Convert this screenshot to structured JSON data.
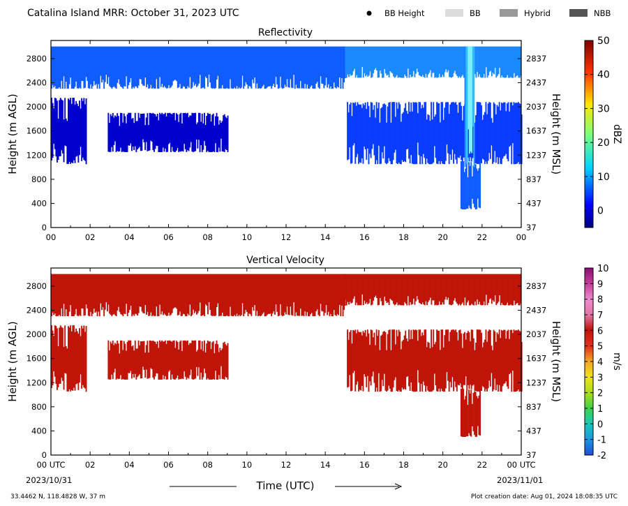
{
  "header": {
    "title": "Catalina Island MRR:  October 31, 2023 UTC",
    "legend": [
      {
        "label": "BB Height",
        "icon": "dot-icon",
        "color": "#000000"
      },
      {
        "label": "BB",
        "icon": "swatch-icon",
        "color": "#dcdcdc"
      },
      {
        "label": "Hybrid",
        "icon": "swatch-icon",
        "color": "#999999"
      },
      {
        "label": "NBB",
        "icon": "swatch-icon",
        "color": "#555555"
      }
    ]
  },
  "footer": {
    "location": "33.4462 N, 118.4828 W, 37 m",
    "creation": "Plot creation date: Aug 01, 2024 18:08:35 UTC",
    "start_date": "2023/10/31",
    "end_date": "2023/11/01",
    "time_label": "Time (UTC)"
  },
  "chart_data": [
    {
      "type": "heatmap",
      "title": "Reflectivity",
      "xlabel": "",
      "ylabel": "Height (m AGL)",
      "ylabel_right": "Height (m MSL)",
      "x_ticks": [
        "00",
        "02",
        "04",
        "06",
        "08",
        "10",
        "12",
        "14",
        "16",
        "18",
        "20",
        "22",
        "00"
      ],
      "y_ticks": [
        "0",
        "400",
        "800",
        "1200",
        "1600",
        "2000",
        "2400",
        "2800"
      ],
      "y_ticks_right": [
        "37",
        "437",
        "837",
        "1237",
        "1637",
        "2037",
        "2437",
        "2837"
      ],
      "xlim": [
        0,
        24
      ],
      "ylim": [
        0,
        3100
      ],
      "colorbar": {
        "label": "dBZ",
        "ticks": [
          "0",
          "10",
          "20",
          "30",
          "40",
          "50"
        ],
        "range": [
          -5,
          50
        ]
      },
      "echo_regions": [
        {
          "t0": 0.0,
          "t1": 1.8,
          "h0": 1050,
          "h1": 2150,
          "value": 0
        },
        {
          "t0": 2.9,
          "t1": 9.0,
          "h0": 1250,
          "h1": 1900,
          "value": 0
        },
        {
          "t0": 0.0,
          "t1": 15.0,
          "h0": 2300,
          "h1": 3000,
          "value": 3
        },
        {
          "t0": 15.0,
          "t1": 24.0,
          "h0": 2480,
          "h1": 3000,
          "value": 4
        },
        {
          "t0": 15.1,
          "t1": 24.0,
          "h0": 1050,
          "h1": 2080,
          "value": 2
        },
        {
          "t0": 20.9,
          "t1": 21.9,
          "h0": 300,
          "h1": 1100,
          "value": 3
        },
        {
          "t0": 21.1,
          "t1": 21.6,
          "h0": 1000,
          "h1": 3000,
          "value": 10
        }
      ]
    },
    {
      "type": "heatmap",
      "title": "Vertical Velocity",
      "xlabel": "Time (UTC)",
      "ylabel": "Height (m AGL)",
      "ylabel_right": "Height (m MSL)",
      "x_ticks": [
        "00 UTC",
        "02",
        "04",
        "06",
        "08",
        "10",
        "12",
        "14",
        "16",
        "18",
        "20",
        "22",
        "00 UTC"
      ],
      "y_ticks": [
        "0",
        "400",
        "800",
        "1200",
        "1600",
        "2000",
        "2400",
        "2800"
      ],
      "y_ticks_right": [
        "37",
        "437",
        "837",
        "1237",
        "1637",
        "2037",
        "2437",
        "2837"
      ],
      "xlim": [
        0,
        24
      ],
      "ylim": [
        0,
        3100
      ],
      "colorbar": {
        "label": "m/s",
        "ticks": [
          "-2",
          "-1",
          "0",
          "1",
          "2",
          "3",
          "4",
          "5",
          "6",
          "7",
          "8",
          "9",
          "10"
        ],
        "range": [
          -2,
          10
        ]
      },
      "echo_regions": [
        {
          "t0": 0.0,
          "t1": 1.8,
          "h0": 1050,
          "h1": 2150,
          "value": 5.5
        },
        {
          "t0": 2.9,
          "t1": 9.0,
          "h0": 1250,
          "h1": 1900,
          "value": 5.5
        },
        {
          "t0": 0.0,
          "t1": 15.0,
          "h0": 2300,
          "h1": 3000,
          "value": 5.5
        },
        {
          "t0": 15.0,
          "t1": 24.0,
          "h0": 2480,
          "h1": 3000,
          "value": 5.5
        },
        {
          "t0": 15.1,
          "t1": 24.0,
          "h0": 1050,
          "h1": 2080,
          "value": 5.5
        },
        {
          "t0": 20.9,
          "t1": 21.9,
          "h0": 300,
          "h1": 1100,
          "value": 5.5
        }
      ]
    }
  ]
}
